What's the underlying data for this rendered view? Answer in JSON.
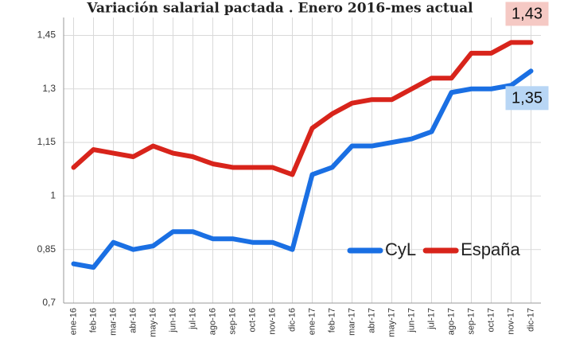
{
  "chart_data": {
    "type": "line",
    "title": "Variación salarial pactada . Enero 2016-mes actual",
    "categories": [
      "ene-16",
      "feb-16",
      "mar-16",
      "abr-16",
      "may-16",
      "jun-16",
      "jul-16",
      "ago-16",
      "sep-16",
      "oct-16",
      "nov-16",
      "dic-16",
      "ene-17",
      "feb-17",
      "mar-17",
      "abr-17",
      "may-17",
      "jun-17",
      "jul-17",
      "ago-17",
      "sep-17",
      "oct-17",
      "nov-17",
      "dic-17"
    ],
    "series": [
      {
        "name": "CyL",
        "color": "#1a6fe3",
        "values": [
          0.81,
          0.8,
          0.87,
          0.85,
          0.86,
          0.9,
          0.9,
          0.88,
          0.88,
          0.87,
          0.87,
          0.85,
          1.06,
          1.08,
          1.14,
          1.14,
          1.15,
          1.16,
          1.18,
          1.29,
          1.3,
          1.3,
          1.31,
          1.35
        ],
        "value_labels": [
          null,
          null,
          null,
          null,
          null,
          null,
          null,
          null,
          null,
          null,
          null,
          null,
          null,
          null,
          null,
          null,
          null,
          null,
          null,
          null,
          null,
          null,
          null,
          "1,35"
        ],
        "label_color": "#b8d6f5"
      },
      {
        "name": "España",
        "color": "#d8241b",
        "values": [
          1.08,
          1.13,
          1.12,
          1.11,
          1.14,
          1.12,
          1.11,
          1.09,
          1.08,
          1.08,
          1.08,
          1.06,
          1.19,
          1.23,
          1.26,
          1.27,
          1.27,
          1.3,
          1.33,
          1.33,
          1.4,
          1.4,
          1.43,
          1.43
        ],
        "value_labels": [
          null,
          null,
          null,
          null,
          null,
          null,
          null,
          null,
          null,
          null,
          null,
          null,
          null,
          null,
          null,
          null,
          null,
          null,
          null,
          null,
          null,
          null,
          null,
          "1,43"
        ],
        "label_color": "#f5c9c4"
      }
    ],
    "ylim": [
      0.7,
      1.5
    ],
    "yticks": [
      {
        "value": 0.7,
        "label": "0,7"
      },
      {
        "value": 0.85,
        "label": "0,85"
      },
      1,
      {
        "value": 1.15,
        "label": "1,15"
      },
      {
        "value": 1.3,
        "label": "1,3"
      },
      {
        "value": 1.45,
        "label": "1,45"
      }
    ],
    "grid": true,
    "legend": "right"
  }
}
